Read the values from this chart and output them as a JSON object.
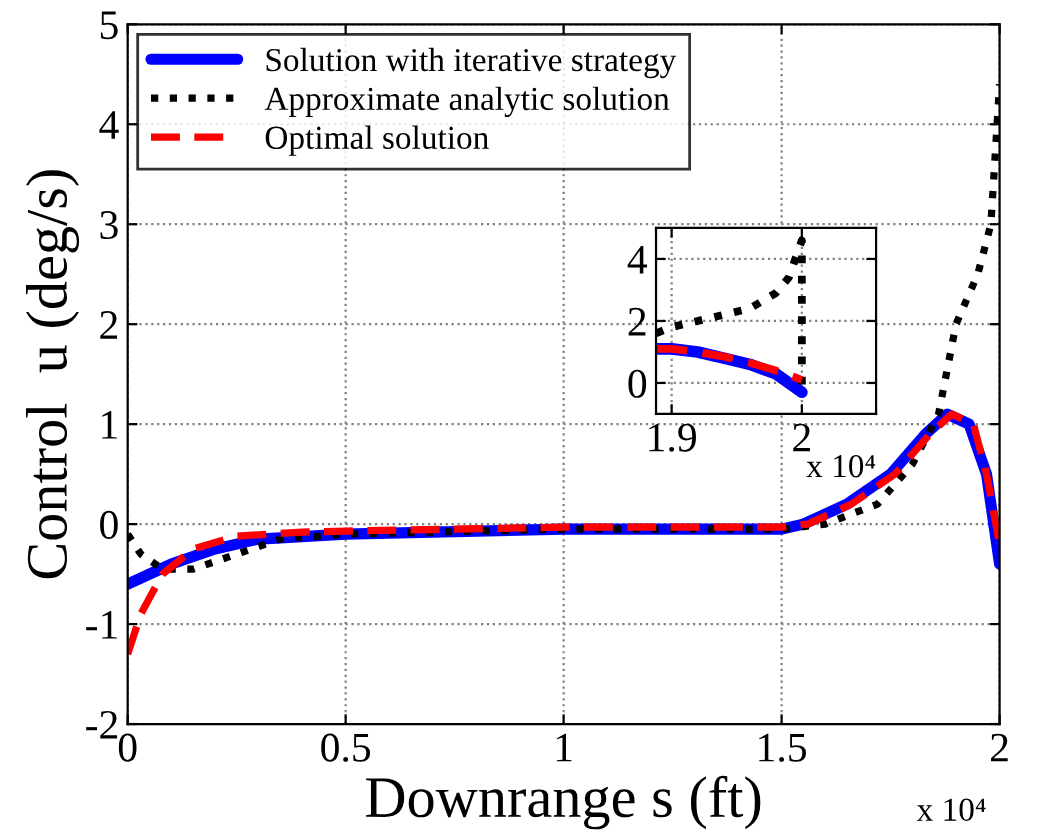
{
  "chart_data": [
    {
      "type": "line",
      "xlabel": "Downrange s (ft)",
      "ylabel": "Control  u (deg/s)",
      "xlim": [
        0,
        2
      ],
      "ylim": [
        -2,
        5
      ],
      "xticks": [
        0,
        0.5,
        1,
        1.5,
        2
      ],
      "yticks": [
        -2,
        -1,
        0,
        1,
        2,
        3,
        4,
        5
      ],
      "grid": true,
      "legend": "top left",
      "annotations": [
        "x 10⁴"
      ],
      "series": [
        {
          "name": "Solution with iterative strategy",
          "color": "#0000ff",
          "line_style": "solid",
          "x": [
            0,
            0.05,
            0.1,
            0.2,
            0.3,
            0.5,
            1.0,
            1.5,
            1.55,
            1.65,
            1.75,
            1.83,
            1.88,
            1.93,
            1.97,
            2.0
          ],
          "values": [
            -0.6,
            -0.5,
            -0.4,
            -0.25,
            -0.15,
            -0.1,
            -0.05,
            -0.05,
            0.0,
            0.2,
            0.5,
            0.9,
            1.1,
            1.0,
            0.5,
            -0.4
          ]
        },
        {
          "name": "Approximate analytic solution",
          "color": "#000000",
          "line_style": "dotted",
          "x": [
            0,
            0.03,
            0.08,
            0.15,
            0.25,
            0.35,
            0.5,
            1.0,
            1.5,
            1.6,
            1.72,
            1.8,
            1.86,
            1.9,
            1.95,
            1.98,
            2.0
          ],
          "values": [
            -0.1,
            -0.3,
            -0.45,
            -0.45,
            -0.3,
            -0.15,
            -0.1,
            -0.05,
            -0.05,
            0.0,
            0.2,
            0.6,
            1.1,
            2.0,
            2.5,
            3.0,
            4.4
          ]
        },
        {
          "name": "Optimal solution",
          "color": "#ff0000",
          "line_style": "dashed",
          "x": [
            0,
            0.03,
            0.08,
            0.15,
            0.25,
            0.4,
            0.5,
            1.0,
            1.5,
            1.56,
            1.66,
            1.76,
            1.84,
            1.89,
            1.94,
            1.97,
            2.0
          ],
          "values": [
            -1.3,
            -0.9,
            -0.5,
            -0.25,
            -0.12,
            -0.08,
            -0.07,
            -0.03,
            -0.03,
            0.0,
            0.2,
            0.5,
            0.9,
            1.1,
            1.0,
            0.5,
            -0.2
          ]
        }
      ]
    },
    {
      "type": "line",
      "xlim": [
        1.888,
        2.057
      ],
      "ylim": [
        -1,
        5
      ],
      "xticks": [
        1.9,
        2
      ],
      "yticks": [
        0,
        2,
        4
      ],
      "grid": true,
      "annotations": [
        "x 10⁴"
      ],
      "series": [
        {
          "color": "#0000ff",
          "line_style": "solid",
          "x": [
            1.888,
            1.9,
            1.92,
            1.94,
            1.96,
            1.98,
            2.0
          ],
          "values": [
            1.1,
            1.1,
            1.0,
            0.8,
            0.6,
            0.3,
            -0.3
          ]
        },
        {
          "color": "#000000",
          "line_style": "dotted",
          "x": [
            1.888,
            1.9,
            1.92,
            1.94,
            1.96,
            1.98,
            1.99,
            2.0,
            2.0
          ],
          "values": [
            1.6,
            1.8,
            2.0,
            2.2,
            2.4,
            2.9,
            3.4,
            4.6,
            -0.2
          ]
        },
        {
          "color": "#ff0000",
          "line_style": "dashed",
          "x": [
            1.888,
            1.9,
            1.92,
            1.94,
            1.96,
            1.98,
            2.0
          ],
          "values": [
            1.1,
            1.1,
            1.0,
            0.85,
            0.65,
            0.4,
            0.1
          ]
        }
      ]
    }
  ]
}
